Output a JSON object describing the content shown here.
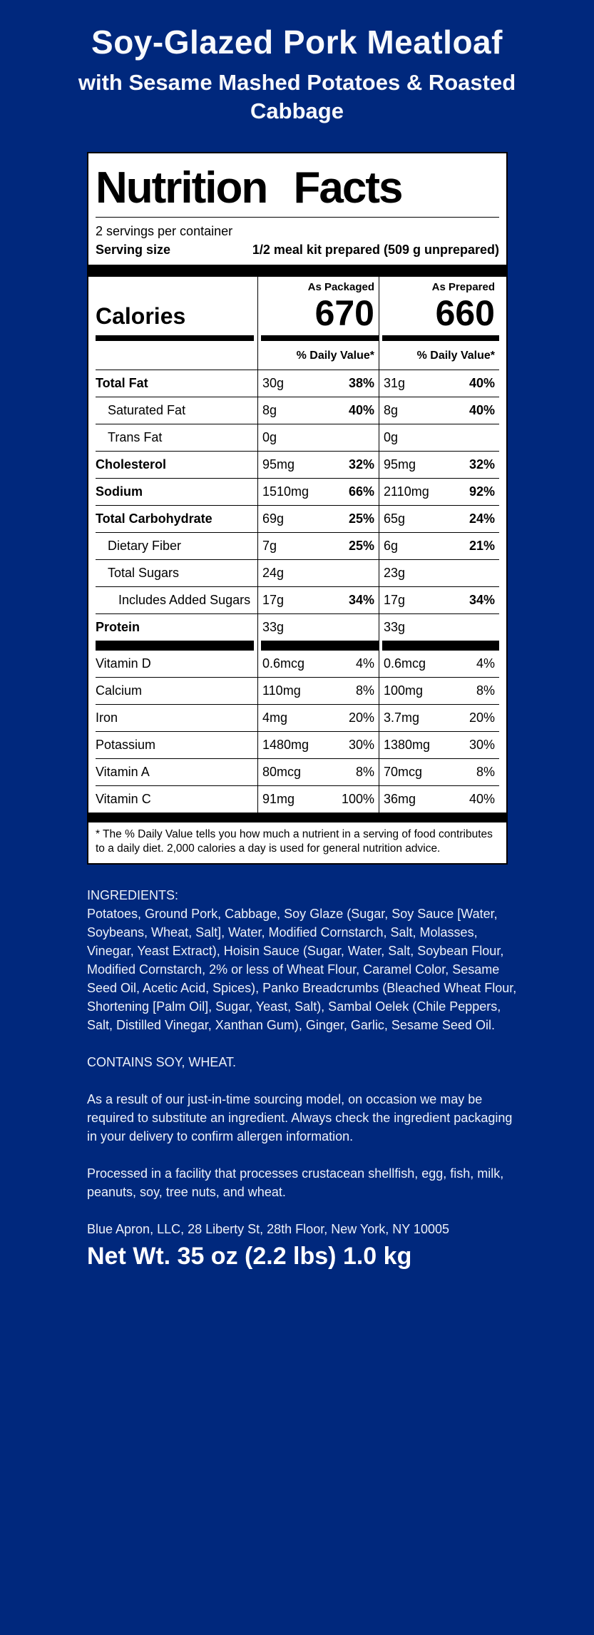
{
  "page": {
    "background_color": "#00287d",
    "panel_background": "#ffffff",
    "text_color_light": "#eef2f9",
    "text_color_dark": "#000000"
  },
  "header": {
    "title": "Soy-Glazed Pork Meatloaf",
    "subtitle": "with Sesame Mashed Potatoes & Roasted Cabbage"
  },
  "nutrition_panel": {
    "title": "Nutrition Facts",
    "servings_per_container": "2 servings per container",
    "serving_size_label": "Serving size",
    "serving_size_value": "1/2 meal kit prepared (509 g unprepared)",
    "calories_label": "Calories",
    "columns": [
      {
        "header": "As Packaged",
        "calories": "670"
      },
      {
        "header": "As Prepared",
        "calories": "660"
      }
    ],
    "daily_value_header": "% Daily Value*",
    "rows": [
      {
        "name": "Total Fat",
        "pk_amt": "30g",
        "pk_dv": "38%",
        "pr_amt": "31g",
        "pr_dv": "40%"
      },
      {
        "name": "Saturated Fat",
        "pk_amt": "8g",
        "pk_dv": "40%",
        "pr_amt": "8g",
        "pr_dv": "40%"
      },
      {
        "name": "Trans Fat",
        "pk_amt": "0g",
        "pk_dv": "",
        "pr_amt": "0g",
        "pr_dv": ""
      },
      {
        "name": "Cholesterol",
        "pk_amt": "95mg",
        "pk_dv": "32%",
        "pr_amt": "95mg",
        "pr_dv": "32%"
      },
      {
        "name": "Sodium",
        "pk_amt": "1510mg",
        "pk_dv": "66%",
        "pr_amt": "2110mg",
        "pr_dv": "92%"
      },
      {
        "name": "Total Carbohydrate",
        "pk_amt": "69g",
        "pk_dv": "25%",
        "pr_amt": "65g",
        "pr_dv": "24%"
      },
      {
        "name": "Dietary Fiber",
        "pk_amt": "7g",
        "pk_dv": "25%",
        "pr_amt": "6g",
        "pr_dv": "21%"
      },
      {
        "name": "Total Sugars",
        "pk_amt": "24g",
        "pk_dv": "",
        "pr_amt": "23g",
        "pr_dv": ""
      },
      {
        "name": "Includes Added Sugars",
        "pk_amt": "17g",
        "pk_dv": "34%",
        "pr_amt": "17g",
        "pr_dv": "34%"
      },
      {
        "name": "Protein",
        "pk_amt": "33g",
        "pk_dv": "",
        "pr_amt": "33g",
        "pr_dv": ""
      }
    ],
    "vitamins": [
      {
        "name": "Vitamin D",
        "pk_amt": "0.6mcg",
        "pk_dv": "4%",
        "pr_amt": "0.6mcg",
        "pr_dv": "4%"
      },
      {
        "name": "Calcium",
        "pk_amt": "110mg",
        "pk_dv": "8%",
        "pr_amt": "100mg",
        "pr_dv": "8%"
      },
      {
        "name": "Iron",
        "pk_amt": "4mg",
        "pk_dv": "20%",
        "pr_amt": "3.7mg",
        "pr_dv": "20%"
      },
      {
        "name": "Potassium",
        "pk_amt": "1480mg",
        "pk_dv": "30%",
        "pr_amt": "1380mg",
        "pr_dv": "30%"
      },
      {
        "name": "Vitamin A",
        "pk_amt": "80mcg",
        "pk_dv": "8%",
        "pr_amt": "70mcg",
        "pr_dv": "8%"
      },
      {
        "name": "Vitamin C",
        "pk_amt": "91mg",
        "pk_dv": "100%",
        "pr_amt": "36mg",
        "pr_dv": "40%"
      }
    ],
    "footnote": "* The % Daily Value tells you how much a nutrient in a serving of food contributes to a daily diet. 2,000 calories a day is used for general nutrition advice."
  },
  "ingredients": {
    "heading": "INGREDIENTS:",
    "body": "Potatoes, Ground Pork, Cabbage, Soy Glaze (Sugar, Soy Sauce [Water, Soybeans, Wheat, Salt], Water, Modified Cornstarch, Salt, Molasses, Vinegar, Yeast Extract), Hoisin Sauce (Sugar, Water, Salt, Soybean Flour, Modified Cornstarch, 2% or less of Wheat Flour, Caramel Color, Sesame Seed Oil, Acetic Acid, Spices), Panko Breadcrumbs (Bleached Wheat Flour, Shortening [Palm Oil], Sugar, Yeast, Salt), Sambal Oelek (Chile Peppers, Salt, Distilled Vinegar, Xanthan Gum), Ginger, Garlic, Sesame Seed Oil.",
    "contains": "CONTAINS SOY, WHEAT.",
    "sourcing_note": "As a result of our just-in-time sourcing model, on occasion we may be required to substitute an ingredient. Always check the ingredient packaging in your delivery to confirm allergen information.",
    "facility_note": "Processed in a facility that processes crustacean shellfish, egg, fish, milk, peanuts, soy, tree nuts, and wheat.",
    "address": "Blue Apron, LLC, 28 Liberty St, 28th Floor, New York, NY 10005"
  },
  "net_weight": "Net Wt. 35 oz (2.2 lbs) 1.0 kg"
}
